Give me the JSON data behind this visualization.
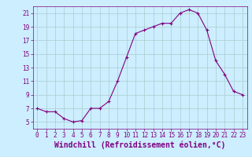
{
  "x": [
    0,
    1,
    2,
    3,
    4,
    5,
    6,
    7,
    8,
    9,
    10,
    11,
    12,
    13,
    14,
    15,
    16,
    17,
    18,
    19,
    20,
    21,
    22,
    23
  ],
  "y": [
    7.0,
    6.5,
    6.5,
    5.5,
    5.0,
    5.2,
    7.0,
    7.0,
    8.0,
    11.0,
    14.5,
    18.0,
    18.5,
    19.0,
    19.5,
    19.5,
    21.0,
    21.5,
    21.0,
    18.5,
    14.0,
    12.0,
    9.5,
    9.0
  ],
  "line_color": "#800080",
  "marker": "+",
  "marker_size": 3,
  "xlabel": "Windchill (Refroidissement éolien,°C)",
  "xlabel_fontsize": 7,
  "background_color": "#cceeff",
  "grid_color": "#aacccc",
  "ylim": [
    4,
    22
  ],
  "xlim": [
    -0.5,
    23.5
  ],
  "yticks": [
    5,
    7,
    9,
    11,
    13,
    15,
    17,
    19,
    21
  ],
  "xticks": [
    0,
    1,
    2,
    3,
    4,
    5,
    6,
    7,
    8,
    9,
    10,
    11,
    12,
    13,
    14,
    15,
    16,
    17,
    18,
    19,
    20,
    21,
    22,
    23
  ],
  "tick_fontsize": 5.5,
  "tick_color": "#800080"
}
